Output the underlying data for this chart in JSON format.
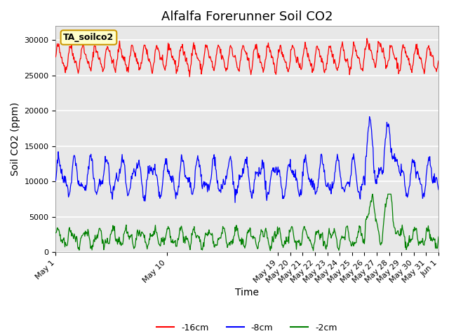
{
  "title": "Alfalfa Forerunner Soil CO2",
  "ylabel": "Soil CO2 (ppm)",
  "xlabel": "Time",
  "annotation_text": "TA_soilco2",
  "annotation_bg": "#ffffcc",
  "annotation_border": "#cc9900",
  "ylim": [
    0,
    32000
  ],
  "yticks": [
    0,
    5000,
    10000,
    15000,
    20000,
    25000,
    30000
  ],
  "legend_labels": [
    "-16cm",
    "-8cm",
    "-2cm"
  ],
  "line_colors": {
    "d16": "red",
    "d8": "blue",
    "d2": "green"
  },
  "bg_color": "#e8e8e8",
  "grid_color": "white",
  "title_fontsize": 13,
  "axis_label_fontsize": 10,
  "tick_fontsize": 8
}
